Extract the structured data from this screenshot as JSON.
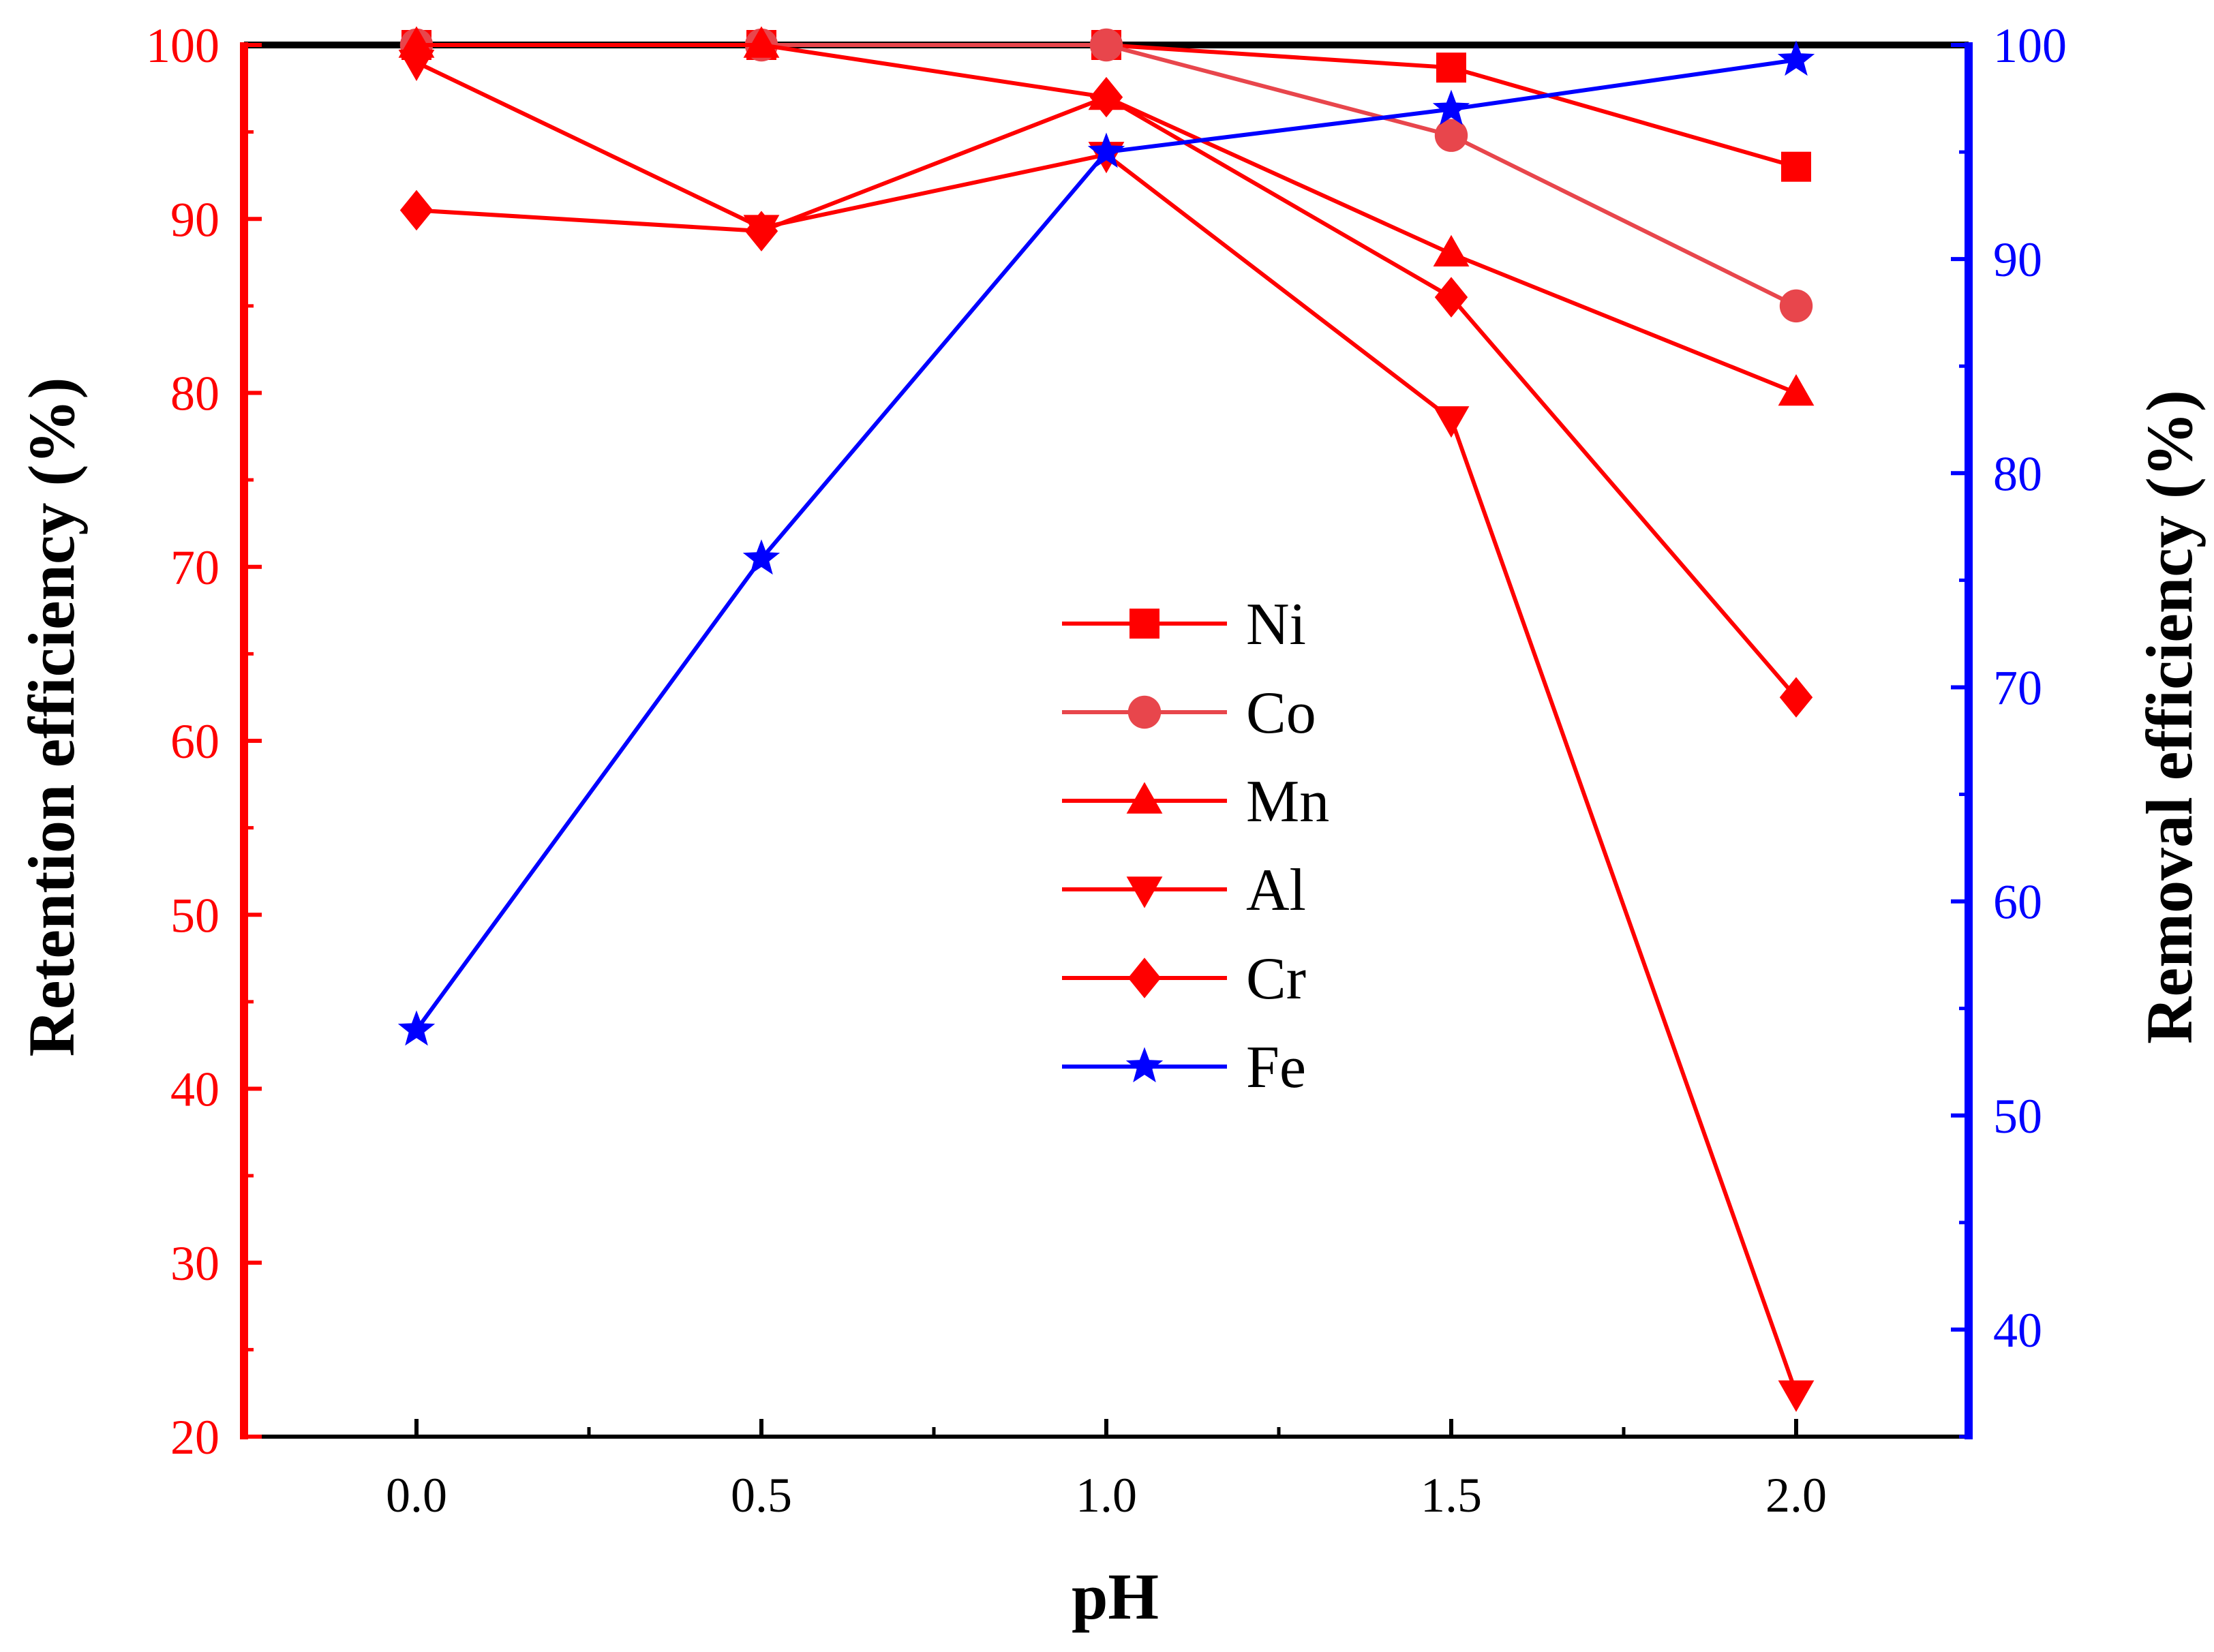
{
  "colors": {
    "left_axis": "#ff0000",
    "right_axis": "#0000ff",
    "frame": "#000000",
    "co_line": "#e8464c"
  },
  "chart_data": {
    "type": "line",
    "title": "",
    "xlabel": "pH",
    "ylabel": "Retention efficiency (%)",
    "y2label": "Removal efficiency (%)",
    "x": [
      0.0,
      0.5,
      1.0,
      1.5,
      2.0
    ],
    "x_tick_labels": [
      "0.0",
      "0.5",
      "1.0",
      "1.5",
      "2.0"
    ],
    "xlim": [
      -0.25,
      2.25
    ],
    "ylim": [
      20,
      100
    ],
    "y_ticks": [
      20,
      30,
      40,
      50,
      60,
      70,
      80,
      90,
      100
    ],
    "y_tick_labels": [
      "20",
      "30",
      "40",
      "50",
      "60",
      "70",
      "80",
      "90",
      "100"
    ],
    "y2lim": [
      35,
      100
    ],
    "y2_ticks": [
      40,
      50,
      60,
      70,
      80,
      90,
      100
    ],
    "y2_tick_labels": [
      "40",
      "50",
      "60",
      "70",
      "80",
      "90",
      "100"
    ],
    "legend_position": "center",
    "series": [
      {
        "name": "Ni",
        "axis": "left",
        "marker": "square",
        "color": "#ff0000",
        "values": [
          100,
          100,
          100,
          98.7,
          93.0
        ]
      },
      {
        "name": "Co",
        "axis": "left",
        "marker": "circle",
        "color": "#e8464c",
        "values": [
          100,
          100,
          100,
          94.8,
          85.0
        ]
      },
      {
        "name": "Mn",
        "axis": "left",
        "marker": "triangle-up",
        "color": "#ff0000",
        "values": [
          100,
          100,
          97.0,
          88.0,
          80.0
        ]
      },
      {
        "name": "Al",
        "axis": "left",
        "marker": "triangle-down",
        "color": "#ff0000",
        "values": [
          99.0,
          89.5,
          93.7,
          78.5,
          22.5
        ]
      },
      {
        "name": "Cr",
        "axis": "left",
        "marker": "diamond",
        "color": "#ff0000",
        "values": [
          90.5,
          89.3,
          97.0,
          85.5,
          62.5
        ]
      },
      {
        "name": "Fe",
        "axis": "right",
        "marker": "star",
        "color": "#0000ff",
        "values": [
          54.0,
          76.0,
          95.0,
          97.0,
          99.3
        ]
      }
    ]
  }
}
